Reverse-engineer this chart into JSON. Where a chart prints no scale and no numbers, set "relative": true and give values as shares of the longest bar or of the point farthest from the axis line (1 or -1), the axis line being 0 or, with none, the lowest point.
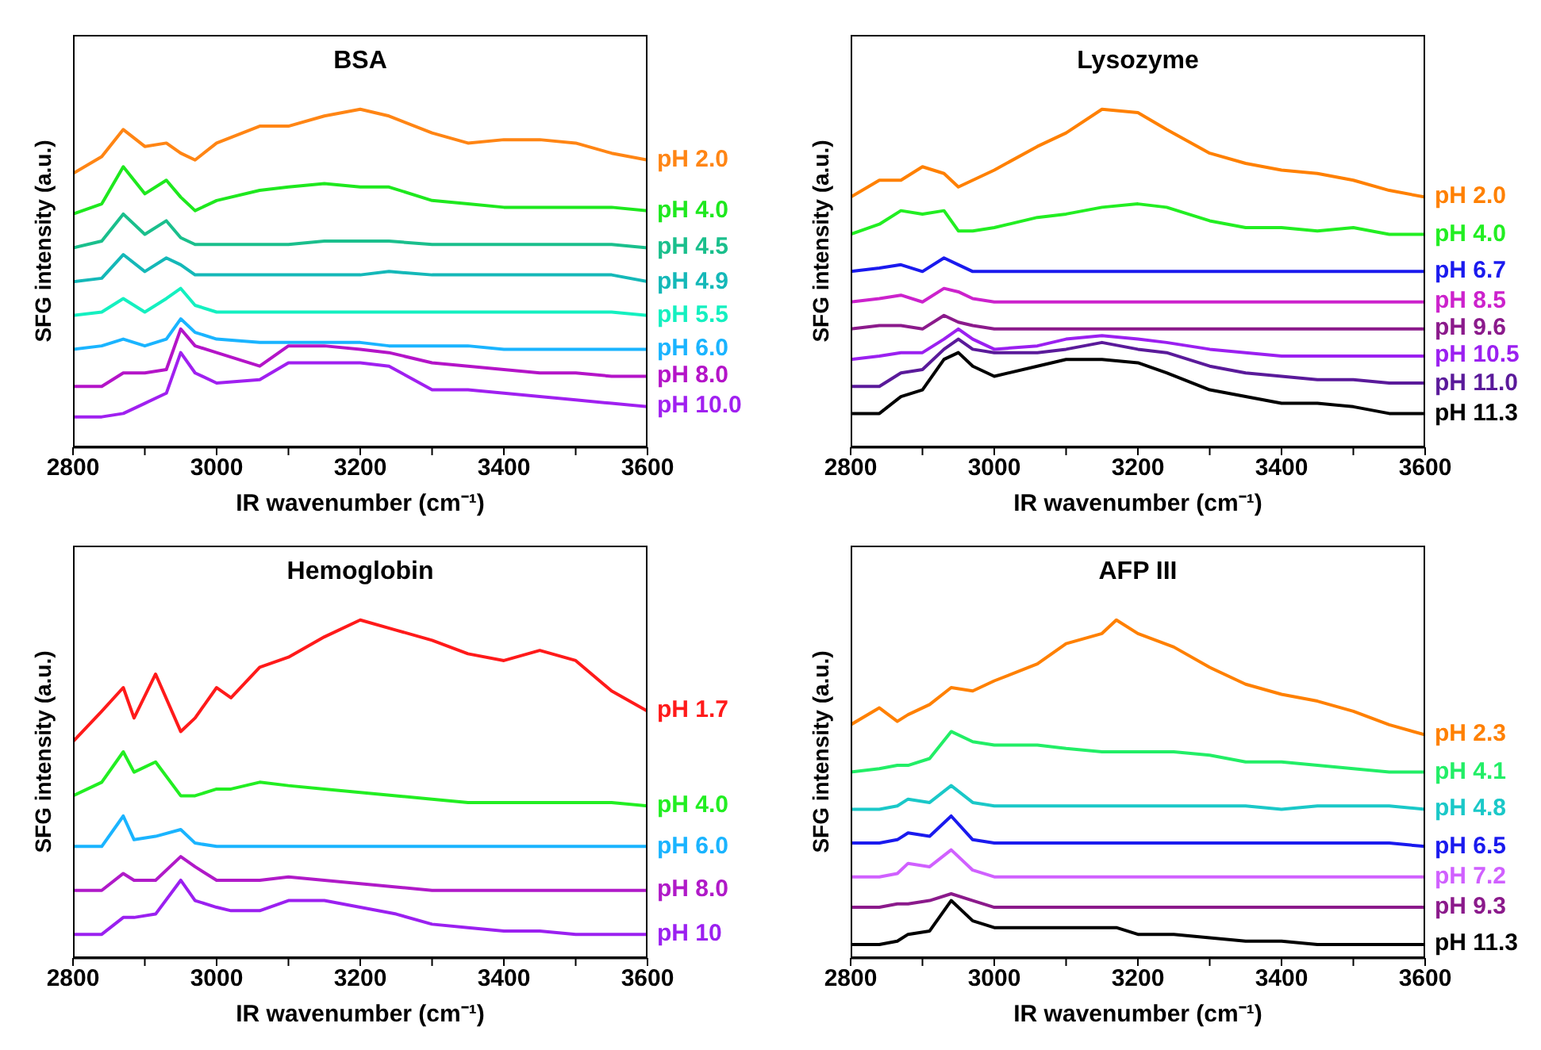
{
  "chart_data": [
    {
      "type": "line",
      "title": "BSA",
      "xlabel": "IR wavenumber (cm⁻¹)",
      "ylabel": "SFG intensity (a.u.)",
      "relative": true,
      "marker": "none",
      "xlim": [
        2800,
        3600
      ],
      "xticks": [
        2800,
        {
          "value": 2900,
          "label": null
        },
        3000,
        {
          "value": 3100,
          "label": null
        },
        3200,
        {
          "value": 3300,
          "label": null
        },
        3400,
        {
          "value": 3500,
          "label": null
        },
        3600
      ],
      "x": [
        2800,
        2840,
        2870,
        2900,
        2930,
        2950,
        2970,
        3000,
        3060,
        3100,
        3150,
        3200,
        3240,
        3300,
        3350,
        3400,
        3450,
        3500,
        3550,
        3600
      ],
      "series": [
        {
          "name": "pH 2.0",
          "color": "#ff8514",
          "values": [
            0.81,
            0.86,
            0.94,
            0.89,
            0.9,
            0.87,
            0.85,
            0.9,
            0.95,
            0.95,
            0.98,
            1.0,
            0.98,
            0.93,
            0.9,
            0.91,
            0.91,
            0.9,
            0.87,
            0.85
          ]
        },
        {
          "name": "pH 4.0",
          "color": "#1ee81e",
          "values": [
            0.69,
            0.72,
            0.83,
            0.75,
            0.79,
            0.74,
            0.7,
            0.73,
            0.76,
            0.77,
            0.78,
            0.77,
            0.77,
            0.73,
            0.72,
            0.71,
            0.71,
            0.71,
            0.71,
            0.7
          ]
        },
        {
          "name": "pH 4.5",
          "color": "#1abf8c",
          "values": [
            0.59,
            0.61,
            0.69,
            0.63,
            0.67,
            0.62,
            0.6,
            0.6,
            0.6,
            0.6,
            0.61,
            0.61,
            0.61,
            0.6,
            0.6,
            0.6,
            0.6,
            0.6,
            0.6,
            0.59
          ]
        },
        {
          "name": "pH 4.9",
          "color": "#14b8b8",
          "values": [
            0.49,
            0.5,
            0.57,
            0.52,
            0.56,
            0.54,
            0.51,
            0.51,
            0.51,
            0.51,
            0.51,
            0.51,
            0.52,
            0.51,
            0.51,
            0.51,
            0.51,
            0.51,
            0.51,
            0.49
          ]
        },
        {
          "name": "pH 5.5",
          "color": "#14f0c0",
          "values": [
            0.39,
            0.4,
            0.44,
            0.4,
            0.44,
            0.47,
            0.42,
            0.4,
            0.4,
            0.4,
            0.4,
            0.4,
            0.4,
            0.4,
            0.4,
            0.4,
            0.4,
            0.4,
            0.4,
            0.39
          ]
        },
        {
          "name": "pH 6.0",
          "color": "#1ab4ff",
          "values": [
            0.29,
            0.3,
            0.32,
            0.3,
            0.32,
            0.38,
            0.34,
            0.32,
            0.31,
            0.31,
            0.31,
            0.31,
            0.3,
            0.3,
            0.3,
            0.29,
            0.29,
            0.29,
            0.29,
            0.29
          ]
        },
        {
          "name": "pH 8.0",
          "color": "#b414c8",
          "values": [
            0.18,
            0.18,
            0.22,
            0.22,
            0.23,
            0.35,
            0.3,
            0.28,
            0.24,
            0.3,
            0.3,
            0.29,
            0.28,
            0.25,
            0.24,
            0.23,
            0.22,
            0.22,
            0.21,
            0.21
          ]
        },
        {
          "name": "pH 10.0",
          "color": "#a020f0",
          "values": [
            0.09,
            0.09,
            0.1,
            0.13,
            0.16,
            0.28,
            0.22,
            0.19,
            0.2,
            0.25,
            0.25,
            0.25,
            0.24,
            0.17,
            0.17,
            0.16,
            0.15,
            0.14,
            0.13,
            0.12
          ]
        }
      ]
    },
    {
      "type": "line",
      "title": "Lysozyme",
      "xlabel": "IR wavenumber (cm⁻¹)",
      "ylabel": "SFG intensity (a.u.)",
      "relative": true,
      "marker": "none",
      "xlim": [
        2800,
        3600
      ],
      "xticks": [
        2800,
        {
          "value": 2900,
          "label": null
        },
        3000,
        {
          "value": 3100,
          "label": null
        },
        3200,
        {
          "value": 3300,
          "label": null
        },
        3400,
        {
          "value": 3500,
          "label": null
        },
        3600
      ],
      "x": [
        2800,
        2840,
        2870,
        2900,
        2930,
        2950,
        2970,
        3000,
        3060,
        3100,
        3150,
        3200,
        3240,
        3300,
        3350,
        3400,
        3450,
        3500,
        3550,
        3600
      ],
      "series": [
        {
          "name": "pH 2.0",
          "color": "#ff8000",
          "values": [
            0.74,
            0.79,
            0.79,
            0.83,
            0.81,
            0.77,
            0.79,
            0.82,
            0.89,
            0.93,
            1.0,
            0.99,
            0.94,
            0.87,
            0.84,
            0.82,
            0.81,
            0.79,
            0.76,
            0.74
          ]
        },
        {
          "name": "pH 4.0",
          "color": "#22ee22",
          "values": [
            0.63,
            0.66,
            0.7,
            0.69,
            0.7,
            0.64,
            0.64,
            0.65,
            0.68,
            0.69,
            0.71,
            0.72,
            0.71,
            0.67,
            0.65,
            0.65,
            0.64,
            0.65,
            0.63,
            0.63
          ]
        },
        {
          "name": "pH 6.7",
          "color": "#1a1aee",
          "values": [
            0.52,
            0.53,
            0.54,
            0.52,
            0.56,
            0.54,
            0.52,
            0.52,
            0.52,
            0.52,
            0.52,
            0.52,
            0.52,
            0.52,
            0.52,
            0.52,
            0.52,
            0.52,
            0.52,
            0.52
          ]
        },
        {
          "name": "pH 8.5",
          "color": "#cc22cc",
          "values": [
            0.43,
            0.44,
            0.45,
            0.43,
            0.47,
            0.46,
            0.44,
            0.43,
            0.43,
            0.43,
            0.43,
            0.43,
            0.43,
            0.43,
            0.43,
            0.43,
            0.43,
            0.43,
            0.43,
            0.43
          ]
        },
        {
          "name": "pH 9.6",
          "color": "#8b1a8b",
          "values": [
            0.35,
            0.36,
            0.36,
            0.35,
            0.39,
            0.37,
            0.36,
            0.35,
            0.35,
            0.35,
            0.35,
            0.35,
            0.35,
            0.35,
            0.35,
            0.35,
            0.35,
            0.35,
            0.35,
            0.35
          ]
        },
        {
          "name": "pH 10.5",
          "color": "#9b20f0",
          "values": [
            0.26,
            0.27,
            0.28,
            0.28,
            0.32,
            0.35,
            0.32,
            0.29,
            0.3,
            0.32,
            0.33,
            0.32,
            0.31,
            0.29,
            0.28,
            0.27,
            0.27,
            0.27,
            0.27,
            0.27
          ]
        },
        {
          "name": "pH 11.0",
          "color": "#5a1a9a",
          "values": [
            0.18,
            0.18,
            0.22,
            0.23,
            0.29,
            0.32,
            0.29,
            0.28,
            0.28,
            0.29,
            0.31,
            0.29,
            0.28,
            0.24,
            0.22,
            0.21,
            0.2,
            0.2,
            0.19,
            0.19
          ]
        },
        {
          "name": "pH 11.3",
          "color": "#000000",
          "values": [
            0.1,
            0.1,
            0.15,
            0.17,
            0.26,
            0.28,
            0.24,
            0.21,
            0.24,
            0.26,
            0.26,
            0.25,
            0.22,
            0.17,
            0.15,
            0.13,
            0.13,
            0.12,
            0.1,
            0.1
          ]
        }
      ]
    },
    {
      "type": "line",
      "title": "Hemoglobin",
      "xlabel": "IR wavenumber (cm⁻¹)",
      "ylabel": "SFG intensity (a.u.)",
      "relative": true,
      "marker": "none",
      "xlim": [
        2800,
        3600
      ],
      "xticks": [
        2800,
        {
          "value": 2900,
          "label": null
        },
        3000,
        {
          "value": 3100,
          "label": null
        },
        3200,
        {
          "value": 3300,
          "label": null
        },
        3400,
        {
          "value": 3500,
          "label": null
        },
        3600
      ],
      "x": [
        2800,
        2840,
        2870,
        2885,
        2915,
        2950,
        2970,
        3000,
        3020,
        3060,
        3100,
        3150,
        3200,
        3250,
        3300,
        3350,
        3400,
        3450,
        3500,
        3550,
        3600
      ],
      "series": [
        {
          "name": "pH 1.7",
          "color": "#ff1a1a",
          "values": [
            0.64,
            0.73,
            0.8,
            0.71,
            0.84,
            0.67,
            0.71,
            0.8,
            0.77,
            0.86,
            0.89,
            0.95,
            1.0,
            0.97,
            0.94,
            0.9,
            0.88,
            0.91,
            0.88,
            0.79,
            0.73
          ]
        },
        {
          "name": "pH 4.0",
          "color": "#22ee22",
          "values": [
            0.48,
            0.52,
            0.61,
            0.55,
            0.58,
            0.48,
            0.48,
            0.5,
            0.5,
            0.52,
            0.51,
            0.5,
            0.49,
            0.48,
            0.47,
            0.46,
            0.46,
            0.46,
            0.46,
            0.46,
            0.45
          ]
        },
        {
          "name": "pH 6.0",
          "color": "#1ab4ff",
          "values": [
            0.33,
            0.33,
            0.42,
            0.35,
            0.36,
            0.38,
            0.34,
            0.33,
            0.33,
            0.33,
            0.33,
            0.33,
            0.33,
            0.33,
            0.33,
            0.33,
            0.33,
            0.33,
            0.33,
            0.33,
            0.33
          ]
        },
        {
          "name": "pH 8.0",
          "color": "#b01ac8",
          "values": [
            0.2,
            0.2,
            0.25,
            0.23,
            0.23,
            0.3,
            0.27,
            0.23,
            0.23,
            0.23,
            0.24,
            0.23,
            0.22,
            0.21,
            0.2,
            0.2,
            0.2,
            0.2,
            0.2,
            0.2,
            0.2
          ]
        },
        {
          "name": "pH 10",
          "color": "#9b20f0",
          "values": [
            0.07,
            0.07,
            0.12,
            0.12,
            0.13,
            0.23,
            0.17,
            0.15,
            0.14,
            0.14,
            0.17,
            0.17,
            0.15,
            0.13,
            0.1,
            0.09,
            0.08,
            0.08,
            0.07,
            0.07,
            0.07
          ]
        }
      ]
    },
    {
      "type": "line",
      "title": "AFP III",
      "xlabel": "IR wavenumber (cm⁻¹)",
      "ylabel": "SFG intensity (a.u.)",
      "relative": true,
      "marker": "none",
      "xlim": [
        2800,
        3600
      ],
      "xticks": [
        2800,
        {
          "value": 2900,
          "label": null
        },
        3000,
        {
          "value": 3100,
          "label": null
        },
        3200,
        {
          "value": 3300,
          "label": null
        },
        3400,
        {
          "value": 3500,
          "label": null
        },
        3600
      ],
      "x": [
        2800,
        2840,
        2865,
        2880,
        2910,
        2940,
        2970,
        3000,
        3060,
        3100,
        3150,
        3170,
        3200,
        3250,
        3300,
        3350,
        3400,
        3450,
        3500,
        3550,
        3600
      ],
      "series": [
        {
          "name": "pH 2.3",
          "color": "#ff8000",
          "values": [
            0.69,
            0.74,
            0.7,
            0.72,
            0.75,
            0.8,
            0.79,
            0.82,
            0.87,
            0.93,
            0.96,
            1.0,
            0.96,
            0.92,
            0.86,
            0.81,
            0.78,
            0.76,
            0.73,
            0.69,
            0.66
          ]
        },
        {
          "name": "pH 4.1",
          "color": "#22ee66",
          "values": [
            0.55,
            0.56,
            0.57,
            0.57,
            0.59,
            0.67,
            0.64,
            0.63,
            0.63,
            0.62,
            0.61,
            0.61,
            0.61,
            0.61,
            0.6,
            0.58,
            0.58,
            0.57,
            0.56,
            0.55,
            0.55
          ]
        },
        {
          "name": "pH 4.8",
          "color": "#1ac8c8",
          "values": [
            0.44,
            0.44,
            0.45,
            0.47,
            0.46,
            0.51,
            0.46,
            0.45,
            0.45,
            0.45,
            0.45,
            0.45,
            0.45,
            0.45,
            0.45,
            0.45,
            0.44,
            0.45,
            0.45,
            0.45,
            0.44
          ]
        },
        {
          "name": "pH 6.5",
          "color": "#1a1aee",
          "values": [
            0.34,
            0.34,
            0.35,
            0.37,
            0.36,
            0.42,
            0.35,
            0.34,
            0.34,
            0.34,
            0.34,
            0.34,
            0.34,
            0.34,
            0.34,
            0.34,
            0.34,
            0.34,
            0.34,
            0.34,
            0.33
          ]
        },
        {
          "name": "pH 7.2",
          "color": "#d060ff",
          "values": [
            0.24,
            0.24,
            0.25,
            0.28,
            0.27,
            0.32,
            0.26,
            0.24,
            0.24,
            0.24,
            0.24,
            0.24,
            0.24,
            0.24,
            0.24,
            0.24,
            0.24,
            0.24,
            0.24,
            0.24,
            0.24
          ]
        },
        {
          "name": "pH 9.3",
          "color": "#8b1a8b",
          "values": [
            0.15,
            0.15,
            0.16,
            0.16,
            0.17,
            0.19,
            0.17,
            0.15,
            0.15,
            0.15,
            0.15,
            0.15,
            0.15,
            0.15,
            0.15,
            0.15,
            0.15,
            0.15,
            0.15,
            0.15,
            0.15
          ]
        },
        {
          "name": "pH 11.3",
          "color": "#000000",
          "values": [
            0.04,
            0.04,
            0.05,
            0.07,
            0.08,
            0.17,
            0.11,
            0.09,
            0.09,
            0.09,
            0.09,
            0.09,
            0.07,
            0.07,
            0.06,
            0.05,
            0.05,
            0.04,
            0.04,
            0.04,
            0.04
          ]
        }
      ]
    }
  ]
}
